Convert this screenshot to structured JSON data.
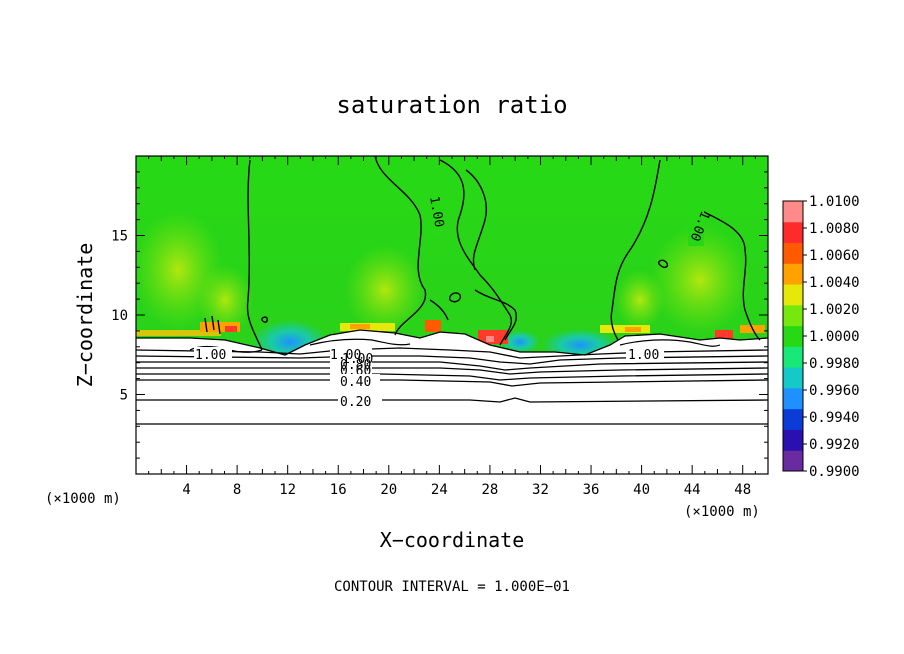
{
  "chart_data": {
    "type": "heatmap",
    "title": "saturation ratio",
    "xlabel": "X−coordinate",
    "ylabel": "Z−coordinate",
    "x_unit": "(×1000 m)",
    "z_unit": "(×1000 m)",
    "xlim": [
      0,
      50
    ],
    "ylim": [
      0,
      20
    ],
    "x_ticks": [
      4,
      8,
      12,
      16,
      20,
      24,
      28,
      32,
      36,
      40,
      44,
      48
    ],
    "y_ticks": [
      5,
      10,
      15
    ],
    "colorbar": {
      "min": 0.99,
      "max": 1.01,
      "labels": [
        "1.0100",
        "1.0080",
        "1.0060",
        "1.0040",
        "1.0020",
        "1.0000",
        "0.9980",
        "0.9960",
        "0.9940",
        "0.9920",
        "0.9900"
      ],
      "colors": [
        "#6a2aa0",
        "#2a10b0",
        "#0c3cd8",
        "#1e90ff",
        "#16c9c9",
        "#18e878",
        "#27d915",
        "#77e80e",
        "#e6e80a",
        "#ffa200",
        "#ff5a00",
        "#ff2a2a",
        "#ff8a8a"
      ]
    },
    "contour_labels": [
      "1.00",
      "1.00",
      "1.00",
      "1.00",
      "1.00",
      "1.00",
      "0.80",
      "0.60",
      "0.40",
      "0.20"
    ],
    "contour_interval_text": "CONTOUR INTERVAL = 1.000E−01",
    "grid": false
  }
}
